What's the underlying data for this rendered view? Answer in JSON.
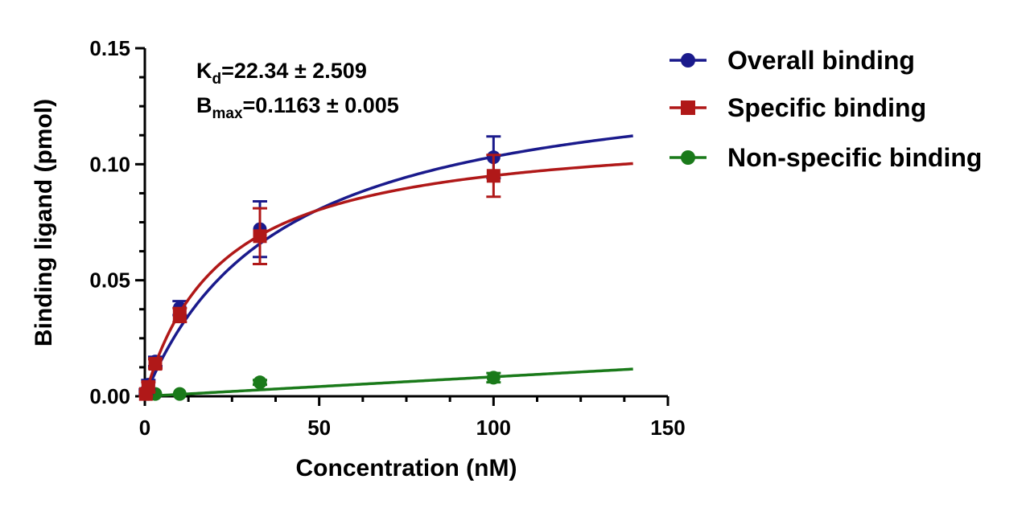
{
  "chart_data": {
    "type": "scatter",
    "xlabel": "Concentration (nM)",
    "ylabel": "Binding ligand (pmol)",
    "xlim": [
      0,
      150
    ],
    "ylim": [
      0,
      0.15
    ],
    "xticks": [
      "0",
      "50",
      "100",
      "150"
    ],
    "yticks": [
      "0.00",
      "0.05",
      "0.10",
      "0.15"
    ],
    "grid": false,
    "legend_position": "top-right",
    "annotations": {
      "kd": {
        "main": "K",
        "sub": "d",
        "rest": "=22.34 ± 2.509"
      },
      "bmax": {
        "main": "B",
        "sub": "max",
        "rest": "=0.1163 ± 0.005"
      }
    },
    "series": [
      {
        "name": "Overall binding",
        "color": "#1a1a8c",
        "marker": "circle",
        "x": [
          0.3,
          1,
          3,
          10,
          33,
          100
        ],
        "y": [
          0.002,
          0.005,
          0.015,
          0.038,
          0.072,
          0.103
        ],
        "yerr": [
          0.001,
          0.002,
          0.002,
          0.003,
          0.012,
          0.009
        ],
        "fit": {
          "model": "hyperbolic",
          "bmax": 0.1435,
          "kd": 39,
          "xmax": 140
        }
      },
      {
        "name": "Specific binding",
        "color": "#b01818",
        "marker": "square",
        "x": [
          0.3,
          1,
          3,
          10,
          33,
          100
        ],
        "y": [
          0.001,
          0.004,
          0.014,
          0.035,
          0.069,
          0.095
        ],
        "yerr": [
          0.001,
          0.002,
          0.002,
          0.003,
          0.012,
          0.009
        ],
        "fit": {
          "model": "hyperbolic",
          "bmax": 0.1163,
          "kd": 22.34,
          "xmax": 140
        }
      },
      {
        "name": "Non-specific binding",
        "color": "#1a7a1a",
        "marker": "circle",
        "x": [
          0.3,
          1,
          3,
          10,
          33,
          100
        ],
        "y": [
          0.001,
          0.001,
          0.001,
          0.001,
          0.006,
          0.008
        ],
        "yerr": [
          0,
          0,
          0,
          0,
          0.001,
          0.002
        ],
        "fit": {
          "model": "linear",
          "slope": 8.38e-05,
          "intercept": 0,
          "xmax": 140
        }
      }
    ]
  }
}
